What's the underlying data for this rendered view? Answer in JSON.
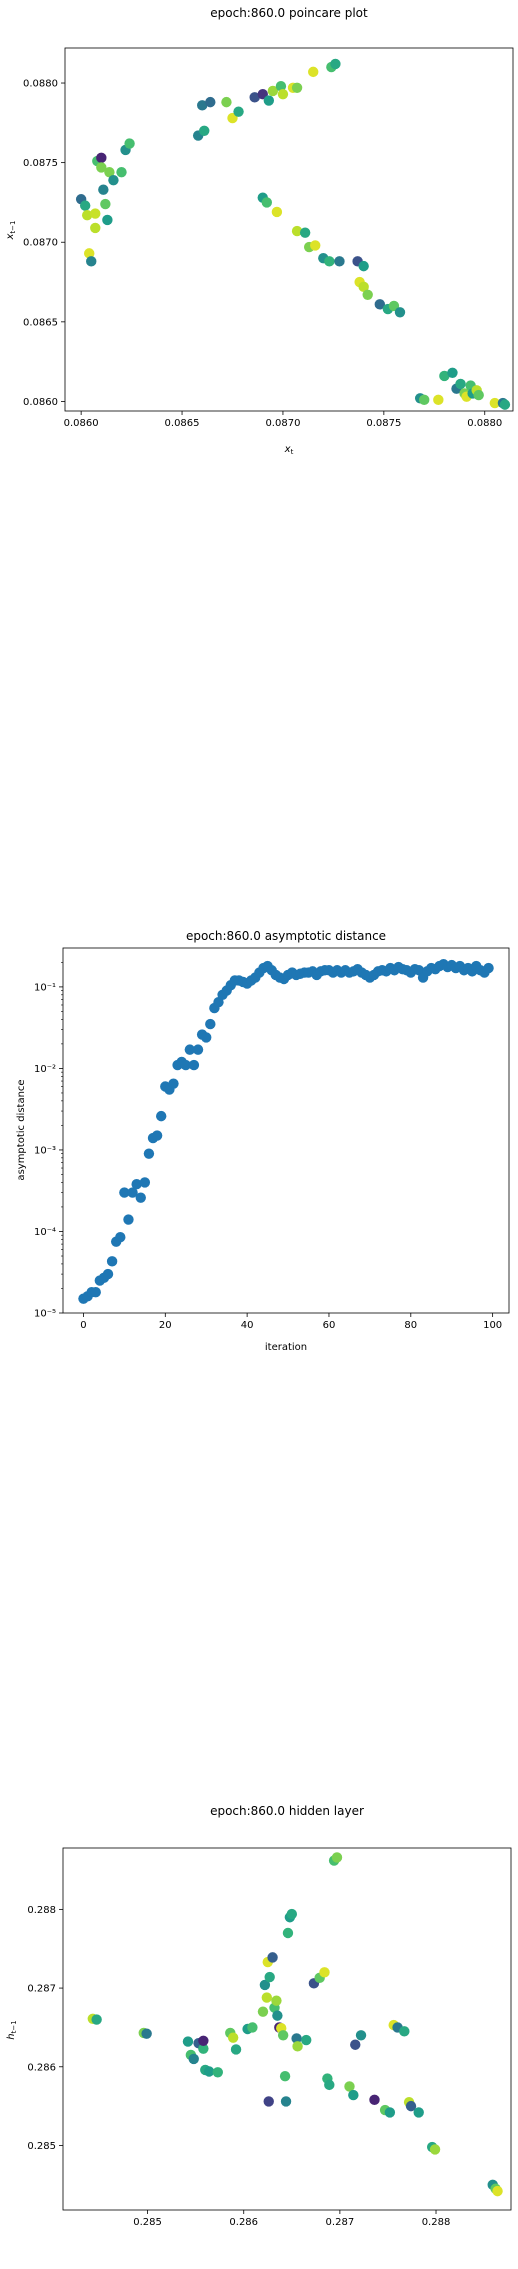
{
  "chart_data": [
    {
      "type": "scatter",
      "title": "epoch:860.0 poincare plot",
      "xlabel": "x_t",
      "ylabel": "x_{t-1}",
      "xlim": [
        0.08592,
        0.08814
      ],
      "ylim": [
        0.08594,
        0.08822
      ],
      "xticks": [
        "0.0860",
        "0.0865",
        "0.0870",
        "0.0875",
        "0.0880"
      ],
      "xtick_values": [
        0.086,
        0.0865,
        0.087,
        0.0875,
        0.088
      ],
      "yticks": [
        "0.0860",
        "0.0865",
        "0.0870",
        "0.0875",
        "0.0880"
      ],
      "ytick_values": [
        0.086,
        0.0865,
        0.087,
        0.0875,
        0.088
      ],
      "colormap": "viridis",
      "points": [
        [
          0.086,
          0.08727,
          0.35
        ],
        [
          0.08602,
          0.08723,
          0.6
        ],
        [
          0.08603,
          0.08717,
          0.9
        ],
        [
          0.08604,
          0.08693,
          0.95
        ],
        [
          0.08605,
          0.08688,
          0.45
        ],
        [
          0.08607,
          0.08709,
          0.9
        ],
        [
          0.08607,
          0.08718,
          0.92
        ],
        [
          0.08608,
          0.08751,
          0.7
        ],
        [
          0.0861,
          0.08753,
          0.1
        ],
        [
          0.0861,
          0.08747,
          0.8
        ],
        [
          0.08611,
          0.08733,
          0.45
        ],
        [
          0.08612,
          0.08724,
          0.75
        ],
        [
          0.08613,
          0.08714,
          0.55
        ],
        [
          0.08614,
          0.08744,
          0.8
        ],
        [
          0.08616,
          0.08739,
          0.5
        ],
        [
          0.0862,
          0.08744,
          0.7
        ],
        [
          0.08622,
          0.08758,
          0.5
        ],
        [
          0.08624,
          0.08762,
          0.7
        ],
        [
          0.08658,
          0.08767,
          0.45
        ],
        [
          0.08661,
          0.0877,
          0.6
        ],
        [
          0.0866,
          0.08786,
          0.4
        ],
        [
          0.08664,
          0.08788,
          0.35
        ],
        [
          0.08672,
          0.08788,
          0.8
        ],
        [
          0.08675,
          0.08778,
          0.95
        ],
        [
          0.08678,
          0.08782,
          0.6
        ],
        [
          0.08686,
          0.08791,
          0.25
        ],
        [
          0.0869,
          0.08793,
          0.15
        ],
        [
          0.08693,
          0.08789,
          0.55
        ],
        [
          0.08695,
          0.08795,
          0.85
        ],
        [
          0.08699,
          0.08798,
          0.7
        ],
        [
          0.087,
          0.08793,
          0.9
        ],
        [
          0.08705,
          0.08797,
          0.95
        ],
        [
          0.08707,
          0.08797,
          0.8
        ],
        [
          0.08715,
          0.08807,
          0.95
        ],
        [
          0.08724,
          0.0881,
          0.7
        ],
        [
          0.08726,
          0.08812,
          0.6
        ],
        [
          0.0869,
          0.08728,
          0.55
        ],
        [
          0.08692,
          0.08725,
          0.7
        ],
        [
          0.08697,
          0.08719,
          0.95
        ],
        [
          0.08707,
          0.08707,
          0.9
        ],
        [
          0.08711,
          0.08706,
          0.6
        ],
        [
          0.08713,
          0.08697,
          0.8
        ],
        [
          0.08716,
          0.08698,
          0.95
        ],
        [
          0.0872,
          0.0869,
          0.5
        ],
        [
          0.08723,
          0.08688,
          0.65
        ],
        [
          0.08728,
          0.08688,
          0.4
        ],
        [
          0.08737,
          0.08688,
          0.25
        ],
        [
          0.0874,
          0.08685,
          0.55
        ],
        [
          0.08738,
          0.08675,
          0.95
        ],
        [
          0.0874,
          0.08672,
          0.9
        ],
        [
          0.08742,
          0.08667,
          0.8
        ],
        [
          0.08748,
          0.08661,
          0.35
        ],
        [
          0.08752,
          0.08658,
          0.6
        ],
        [
          0.08755,
          0.0866,
          0.75
        ],
        [
          0.08758,
          0.08656,
          0.5
        ],
        [
          0.08768,
          0.08602,
          0.5
        ],
        [
          0.0877,
          0.08601,
          0.75
        ],
        [
          0.08777,
          0.08601,
          0.95
        ],
        [
          0.0878,
          0.08616,
          0.65
        ],
        [
          0.08784,
          0.08618,
          0.55
        ],
        [
          0.08786,
          0.08608,
          0.4
        ],
        [
          0.08788,
          0.08611,
          0.6
        ],
        [
          0.0879,
          0.08605,
          0.8
        ],
        [
          0.08791,
          0.08603,
          0.95
        ],
        [
          0.08793,
          0.0861,
          0.7
        ],
        [
          0.08794,
          0.08605,
          0.55
        ],
        [
          0.08796,
          0.08607,
          0.9
        ],
        [
          0.08797,
          0.08604,
          0.75
        ],
        [
          0.08805,
          0.08599,
          0.95
        ],
        [
          0.08809,
          0.08599,
          0.4
        ],
        [
          0.0881,
          0.08598,
          0.6
        ]
      ]
    },
    {
      "type": "scatter",
      "title": "epoch:860.0 asymptotic distance",
      "xlabel": "iteration",
      "ylabel": "asymptotic distance",
      "xlim": [
        -5,
        104
      ],
      "ylim": [
        1e-05,
        0.3
      ],
      "yscale": "log",
      "color": "#1f77b4",
      "xticks": [
        "0",
        "20",
        "40",
        "60",
        "80",
        "100"
      ],
      "xtick_values": [
        0,
        20,
        40,
        60,
        80,
        100
      ],
      "yticks": [
        "10⁻⁵",
        "10⁻⁴",
        "10⁻³",
        "10⁻²",
        "10⁻¹"
      ],
      "ytick_values": [
        1e-05,
        0.0001,
        0.001,
        0.01,
        0.1
      ],
      "x": [
        0,
        1,
        2,
        3,
        4,
        5,
        6,
        7,
        8,
        9,
        10,
        11,
        12,
        13,
        14,
        15,
        16,
        17,
        18,
        19,
        20,
        21,
        22,
        23,
        24,
        25,
        26,
        27,
        28,
        29,
        30,
        31,
        32,
        33,
        34,
        35,
        36,
        37,
        38,
        39,
        40,
        41,
        42,
        43,
        44,
        45,
        46,
        47,
        48,
        49,
        50,
        51,
        52,
        53,
        54,
        55,
        56,
        57,
        58,
        59,
        60,
        61,
        62,
        63,
        64,
        65,
        66,
        67,
        68,
        69,
        70,
        71,
        72,
        73,
        74,
        75,
        76,
        77,
        78,
        79,
        80,
        81,
        82,
        83,
        84,
        85,
        86,
        87,
        88,
        89,
        90,
        91,
        92,
        93,
        94,
        95,
        96,
        97,
        98,
        99
      ],
      "y": [
        1.5e-05,
        1.6e-05,
        1.8e-05,
        1.8e-05,
        2.5e-05,
        2.7e-05,
        3e-05,
        4.3e-05,
        7.5e-05,
        8.5e-05,
        0.0003,
        0.00014,
        0.0003,
        0.00038,
        0.00026,
        0.0004,
        0.0009,
        0.0014,
        0.0015,
        0.0026,
        0.006,
        0.0055,
        0.0065,
        0.011,
        0.012,
        0.011,
        0.017,
        0.011,
        0.017,
        0.026,
        0.024,
        0.035,
        0.055,
        0.065,
        0.08,
        0.09,
        0.105,
        0.12,
        0.12,
        0.115,
        0.11,
        0.12,
        0.13,
        0.15,
        0.17,
        0.18,
        0.16,
        0.14,
        0.13,
        0.125,
        0.14,
        0.15,
        0.14,
        0.145,
        0.15,
        0.15,
        0.155,
        0.14,
        0.155,
        0.16,
        0.16,
        0.15,
        0.16,
        0.15,
        0.16,
        0.15,
        0.155,
        0.165,
        0.15,
        0.14,
        0.13,
        0.14,
        0.155,
        0.16,
        0.155,
        0.17,
        0.16,
        0.175,
        0.165,
        0.16,
        0.15,
        0.165,
        0.16,
        0.13,
        0.155,
        0.17,
        0.165,
        0.18,
        0.19,
        0.175,
        0.185,
        0.17,
        0.18,
        0.16,
        0.17,
        0.155,
        0.18,
        0.16,
        0.15,
        0.17
      ]
    },
    {
      "type": "scatter",
      "title": "epoch:860.0 hidden layer",
      "xlabel": "h_t",
      "ylabel": "h_{t-1}",
      "xlim": [
        0.28412,
        0.28878
      ],
      "ylim": [
        0.28418,
        0.28878
      ],
      "xticks": [
        "0.285",
        "0.286",
        "0.287",
        "0.288"
      ],
      "xtick_values": [
        0.285,
        0.286,
        0.287,
        0.288
      ],
      "yticks": [
        "0.285",
        "0.286",
        "0.287",
        "0.288"
      ],
      "ytick_values": [
        0.285,
        0.286,
        0.287,
        0.288
      ],
      "colormap": "viridis",
      "points": [
        [
          0.28443,
          0.28661,
          0.9
        ],
        [
          0.28447,
          0.2866,
          0.6
        ],
        [
          0.28496,
          0.28643,
          0.8
        ],
        [
          0.28499,
          0.28642,
          0.4
        ],
        [
          0.28542,
          0.28632,
          0.55
        ],
        [
          0.28545,
          0.28615,
          0.7
        ],
        [
          0.28548,
          0.2861,
          0.45
        ],
        [
          0.28553,
          0.2863,
          0.3
        ],
        [
          0.28558,
          0.28623,
          0.65
        ],
        [
          0.28558,
          0.28633,
          0.1
        ],
        [
          0.2856,
          0.28596,
          0.6
        ],
        [
          0.28564,
          0.28594,
          0.55
        ],
        [
          0.28573,
          0.28593,
          0.65
        ],
        [
          0.28586,
          0.28643,
          0.75
        ],
        [
          0.28589,
          0.28637,
          0.9
        ],
        [
          0.28592,
          0.28622,
          0.6
        ],
        [
          0.28604,
          0.28648,
          0.55
        ],
        [
          0.28609,
          0.2865,
          0.7
        ],
        [
          0.2862,
          0.2867,
          0.8
        ],
        [
          0.28622,
          0.28704,
          0.5
        ],
        [
          0.28624,
          0.28688,
          0.9
        ],
        [
          0.28625,
          0.28733,
          0.95
        ],
        [
          0.28627,
          0.28714,
          0.6
        ],
        [
          0.2863,
          0.28739,
          0.3
        ],
        [
          0.28632,
          0.28675,
          0.7
        ],
        [
          0.28634,
          0.28684,
          0.85
        ],
        [
          0.28635,
          0.28665,
          0.5
        ],
        [
          0.28637,
          0.2865,
          0.1
        ],
        [
          0.28639,
          0.28649,
          0.95
        ],
        [
          0.28641,
          0.2864,
          0.75
        ],
        [
          0.28643,
          0.28588,
          0.7
        ],
        [
          0.28646,
          0.2877,
          0.65
        ],
        [
          0.28648,
          0.2879,
          0.55
        ],
        [
          0.2865,
          0.28794,
          0.6
        ],
        [
          0.28655,
          0.28636,
          0.4
        ],
        [
          0.28656,
          0.28626,
          0.85
        ],
        [
          0.28665,
          0.28634,
          0.6
        ],
        [
          0.28673,
          0.28706,
          0.25
        ],
        [
          0.28679,
          0.28713,
          0.75
        ],
        [
          0.28684,
          0.2872,
          0.95
        ],
        [
          0.28687,
          0.28585,
          0.65
        ],
        [
          0.28689,
          0.28577,
          0.6
        ],
        [
          0.28694,
          0.28862,
          0.7
        ],
        [
          0.28697,
          0.28866,
          0.8
        ],
        [
          0.2871,
          0.28575,
          0.8
        ],
        [
          0.28714,
          0.28564,
          0.55
        ],
        [
          0.28716,
          0.28628,
          0.25
        ],
        [
          0.28722,
          0.2864,
          0.5
        ],
        [
          0.28736,
          0.28558,
          0.1
        ],
        [
          0.28747,
          0.28545,
          0.75
        ],
        [
          0.28752,
          0.28542,
          0.55
        ],
        [
          0.28756,
          0.28653,
          0.95
        ],
        [
          0.2876,
          0.2865,
          0.4
        ],
        [
          0.28767,
          0.28645,
          0.6
        ],
        [
          0.28772,
          0.28555,
          0.9
        ],
        [
          0.28774,
          0.2855,
          0.3
        ],
        [
          0.28782,
          0.28542,
          0.55
        ],
        [
          0.28796,
          0.28498,
          0.6
        ],
        [
          0.28799,
          0.28495,
          0.85
        ],
        [
          0.28859,
          0.2845,
          0.5
        ],
        [
          0.28862,
          0.28445,
          0.75
        ],
        [
          0.28864,
          0.28442,
          0.95
        ],
        [
          0.28626,
          0.28556,
          0.2
        ],
        [
          0.28644,
          0.28556,
          0.45
        ]
      ]
    }
  ]
}
